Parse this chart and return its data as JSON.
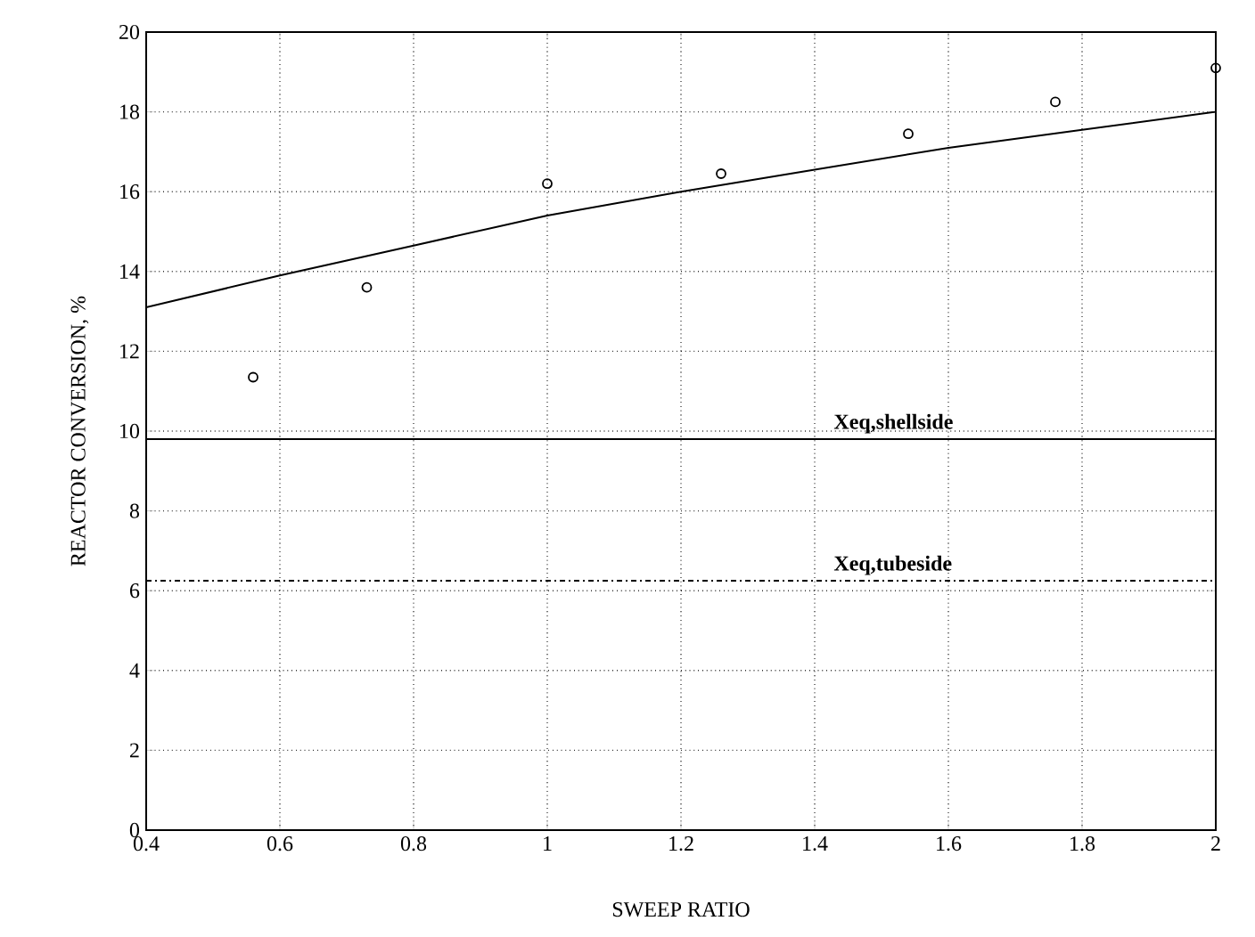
{
  "chart_data": {
    "type": "scatter",
    "xlabel": "SWEEP RATIO",
    "ylabel": "REACTOR CONVERSION, %",
    "xlim": [
      0.4,
      2
    ],
    "xticks": [
      0.4,
      0.6,
      0.8,
      1,
      1.2,
      1.4,
      1.6,
      1.8,
      2
    ],
    "ylim": [
      0,
      20
    ],
    "yticks": [
      0,
      2,
      4,
      6,
      8,
      10,
      12,
      14,
      16,
      18,
      20
    ],
    "grid": true,
    "series": [
      {
        "color": "#000000",
        "marker": "circle",
        "x": [
          0.56,
          0.73,
          1.0,
          1.26,
          1.54,
          1.76,
          2.0
        ],
        "values": [
          11.35,
          13.6,
          16.2,
          16.45,
          17.45,
          18.25,
          19.1
        ]
      },
      {
        "type": "line",
        "color": "#000000",
        "line_style": "solid",
        "x": [
          0.4,
          0.6,
          0.8,
          1.0,
          1.2,
          1.4,
          1.6,
          1.8,
          2.0
        ],
        "values": [
          13.1,
          13.9,
          14.65,
          15.4,
          16.0,
          16.55,
          17.1,
          17.55,
          18.0
        ]
      }
    ],
    "ref_lines": [
      {
        "axis": "y",
        "value": 9.8,
        "label": "Xeq,shellside",
        "color": "#000000",
        "line_style": "solid"
      },
      {
        "axis": "y",
        "value": 6.25,
        "label": "Xeq,tubeside",
        "color": "#000000",
        "line_style": "dashdot"
      }
    ]
  }
}
